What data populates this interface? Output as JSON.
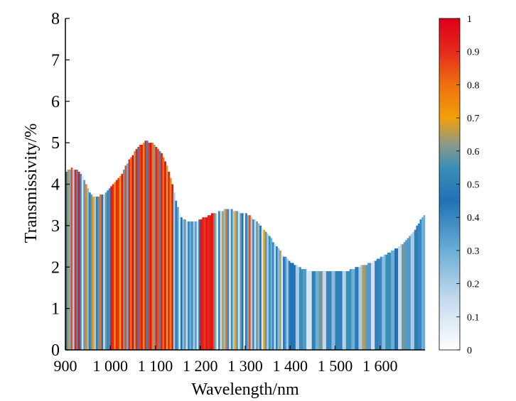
{
  "chart_data": {
    "type": "bar",
    "xlabel": "Wavelength/nm",
    "ylabel": "Transmissivity/%",
    "xlim": [
      900,
      1700
    ],
    "ylim": [
      0,
      8
    ],
    "x_ticks": [
      900,
      1000,
      1100,
      1200,
      1300,
      1400,
      1500,
      1600
    ],
    "x_tick_labels": [
      "900",
      "1 000",
      "1 100",
      "1 200",
      "1 300",
      "1 400",
      "1 500",
      "1 600"
    ],
    "y_ticks": [
      0,
      1,
      2,
      3,
      4,
      5,
      6,
      7,
      8
    ],
    "y_tick_labels": [
      "0",
      "1",
      "2",
      "3",
      "4",
      "5",
      "6",
      "7",
      "8"
    ],
    "grid": false,
    "bar_step_nm": 4,
    "transmissivity_profile": [
      [
        900,
        4.3
      ],
      [
        905,
        4.35
      ],
      [
        912,
        4.38
      ],
      [
        925,
        4.35
      ],
      [
        935,
        4.25
      ],
      [
        945,
        4.05
      ],
      [
        953,
        3.8
      ],
      [
        960,
        3.72
      ],
      [
        975,
        3.72
      ],
      [
        985,
        3.75
      ],
      [
        1000,
        3.9
      ],
      [
        1020,
        4.15
      ],
      [
        1040,
        4.55
      ],
      [
        1060,
        4.88
      ],
      [
        1080,
        5.05
      ],
      [
        1095,
        4.98
      ],
      [
        1110,
        4.82
      ],
      [
        1125,
        4.5
      ],
      [
        1137,
        4.05
      ],
      [
        1147,
        3.55
      ],
      [
        1157,
        3.22
      ],
      [
        1168,
        3.12
      ],
      [
        1180,
        3.1
      ],
      [
        1195,
        3.12
      ],
      [
        1215,
        3.22
      ],
      [
        1235,
        3.32
      ],
      [
        1255,
        3.38
      ],
      [
        1270,
        3.38
      ],
      [
        1290,
        3.32
      ],
      [
        1305,
        3.28
      ],
      [
        1320,
        3.15
      ],
      [
        1340,
        2.95
      ],
      [
        1355,
        2.72
      ],
      [
        1370,
        2.5
      ],
      [
        1385,
        2.28
      ],
      [
        1400,
        2.12
      ],
      [
        1415,
        2.02
      ],
      [
        1430,
        1.95
      ],
      [
        1445,
        1.9
      ],
      [
        1470,
        1.88
      ],
      [
        1500,
        1.88
      ],
      [
        1525,
        1.9
      ],
      [
        1545,
        1.98
      ],
      [
        1565,
        2.05
      ],
      [
        1585,
        2.12
      ],
      [
        1605,
        2.25
      ],
      [
        1625,
        2.38
      ],
      [
        1645,
        2.52
      ],
      [
        1665,
        2.72
      ],
      [
        1680,
        2.95
      ],
      [
        1693,
        3.2
      ],
      [
        1697,
        3.25
      ]
    ],
    "color_scale": {
      "type": "sequential",
      "min": 0,
      "max": 1,
      "ticks": [
        0,
        0.1,
        0.2,
        0.3,
        0.4,
        0.5,
        0.6,
        0.7,
        0.8,
        0.9,
        1
      ],
      "tick_labels": [
        "0",
        "0.1",
        "0.2",
        "0.3",
        "0.4",
        "0.5",
        "0.6",
        "0.7",
        "0.8",
        "0.9",
        "1"
      ],
      "stops": [
        [
          0,
          "#ffffff"
        ],
        [
          0.15,
          "#c6dbef"
        ],
        [
          0.3,
          "#6baed6"
        ],
        [
          0.45,
          "#2171b5"
        ],
        [
          0.55,
          "#3a8fb7"
        ],
        [
          0.62,
          "#8c9a8a"
        ],
        [
          0.7,
          "#f0a00a"
        ],
        [
          0.8,
          "#f07010"
        ],
        [
          0.9,
          "#e42a1c"
        ],
        [
          1,
          "#e00018"
        ]
      ]
    },
    "color_value_bands": [
      {
        "range": [
          900,
          960
        ],
        "values": [
          0.45,
          0.65,
          0.3,
          0.85,
          0.2,
          0.92,
          0.55,
          0.95,
          0.4,
          0.1,
          0.35,
          0.75,
          0.25,
          0.5,
          0.6
        ]
      },
      {
        "range": [
          960,
          1000
        ],
        "values": [
          0.7,
          0.2,
          0.5,
          0.35,
          0.8,
          0.45,
          0.15,
          0.6,
          0.4,
          0.55
        ]
      },
      {
        "range": [
          1000,
          1140
        ],
        "values": [
          0.95,
          0.9,
          0.75,
          0.92,
          0.88,
          0.7,
          0.95,
          0.6,
          0.85,
          0.3,
          0.9,
          0.8,
          0.98,
          0.65,
          0.92,
          0.5,
          0.86,
          0.95,
          0.72,
          0.9,
          0.4,
          0.88,
          0.96,
          0.78,
          0.62,
          0.91,
          0.85,
          0.55,
          0.93,
          0.8,
          0.97,
          0.68,
          0.9,
          0.75,
          0.94
        ]
      },
      {
        "range": [
          1140,
          1200
        ],
        "values": [
          0.2,
          0.5,
          0.35,
          0.1,
          0.45,
          0.25,
          0.6,
          0.15,
          0.4,
          0.3,
          0.55,
          0.2,
          0.35,
          0.12,
          0.48
        ]
      },
      {
        "range": [
          1200,
          1230
        ],
        "values": [
          0.95,
          0.92,
          0.88,
          0.96,
          0.9,
          0.93,
          0.97,
          0.85
        ]
      },
      {
        "range": [
          1230,
          1400
        ],
        "values": [
          0.3,
          0.05,
          0.5,
          0.15,
          0.65,
          0.25,
          0.8,
          0.4,
          0.1,
          0.55,
          0.2,
          0.7,
          0.35,
          0.12,
          0.6,
          0.45,
          0.08,
          0.5,
          0.3,
          0.85,
          0.2,
          0.4,
          0.15,
          0.6,
          0.25,
          0.45,
          0.1,
          0.7,
          0.35,
          0.2,
          0.55,
          0.3,
          0.4,
          0.15,
          0.5,
          0.25,
          0.65,
          0.1,
          0.45,
          0.35,
          0.2,
          0.5,
          0.3
        ]
      },
      {
        "range": [
          1400,
          1700
        ],
        "values": [
          0.45,
          0.2,
          0.55,
          0.35,
          0.1,
          0.5,
          0.3,
          0.6,
          0.15,
          0.4,
          0.25,
          0.5,
          0.42,
          0.18,
          0.55,
          0.3,
          0.48,
          0.2,
          0.65,
          0.35,
          0.12,
          0.5,
          0.4,
          0.25,
          0.55,
          0.3,
          0.45,
          0.15,
          0.6,
          0.35,
          0.2,
          0.5,
          0.4,
          0.3
        ]
      }
    ]
  }
}
